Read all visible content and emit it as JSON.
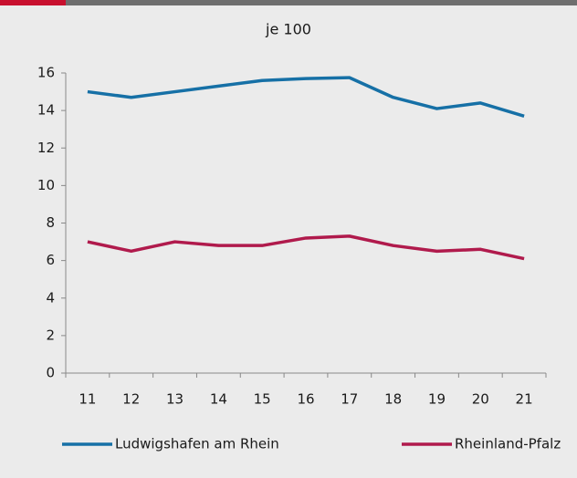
{
  "chart_data": {
    "type": "line",
    "title": "je 100",
    "categories": [
      "11",
      "12",
      "13",
      "14",
      "15",
      "16",
      "17",
      "18",
      "19",
      "20",
      "21"
    ],
    "series": [
      {
        "name": "Ludwigshafen am Rhein",
        "color": "#1670a6",
        "values": [
          15.0,
          14.7,
          15.0,
          15.3,
          15.6,
          15.7,
          15.75,
          14.7,
          14.1,
          14.4,
          13.7
        ]
      },
      {
        "name": "Rheinland-Pfalz",
        "color": "#b01a4c",
        "values": [
          7.0,
          6.5,
          7.0,
          6.8,
          6.8,
          7.2,
          7.3,
          6.8,
          6.5,
          6.6,
          6.1
        ]
      }
    ],
    "ylim": [
      0,
      16
    ],
    "yticks": [
      0,
      2,
      4,
      6,
      8,
      10,
      12,
      14,
      16
    ],
    "grid": false,
    "legend": "bottom"
  }
}
